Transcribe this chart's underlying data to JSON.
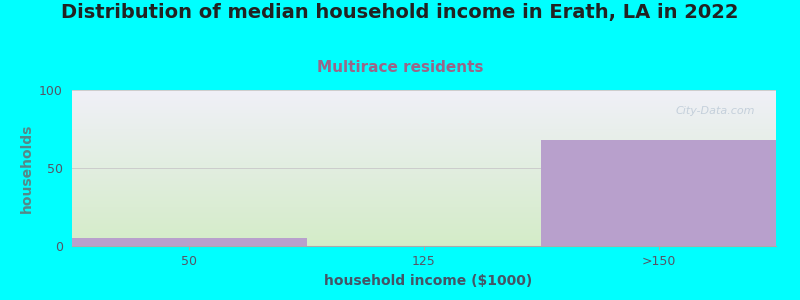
{
  "title": "Distribution of median household income in Erath, LA in 2022",
  "subtitle": "Multirace residents",
  "xlabel": "household income ($1000)",
  "ylabel": "households",
  "categories": [
    "50",
    "125",
    ">150"
  ],
  "values": [
    5,
    0,
    68
  ],
  "bar_color": "#b8a0cc",
  "background_color": "#00ffff",
  "plot_bg_color_top": "#f0f0f8",
  "plot_bg_color_bottom": "#d4ecc8",
  "ylim": [
    0,
    100
  ],
  "yticks": [
    0,
    50,
    100
  ],
  "title_fontsize": 14,
  "subtitle_fontsize": 11,
  "subtitle_color": "#996688",
  "axis_label_fontsize": 10,
  "tick_fontsize": 9,
  "ylabel_color": "#558888",
  "xlabel_color": "#445566",
  "watermark": "City-Data.com"
}
